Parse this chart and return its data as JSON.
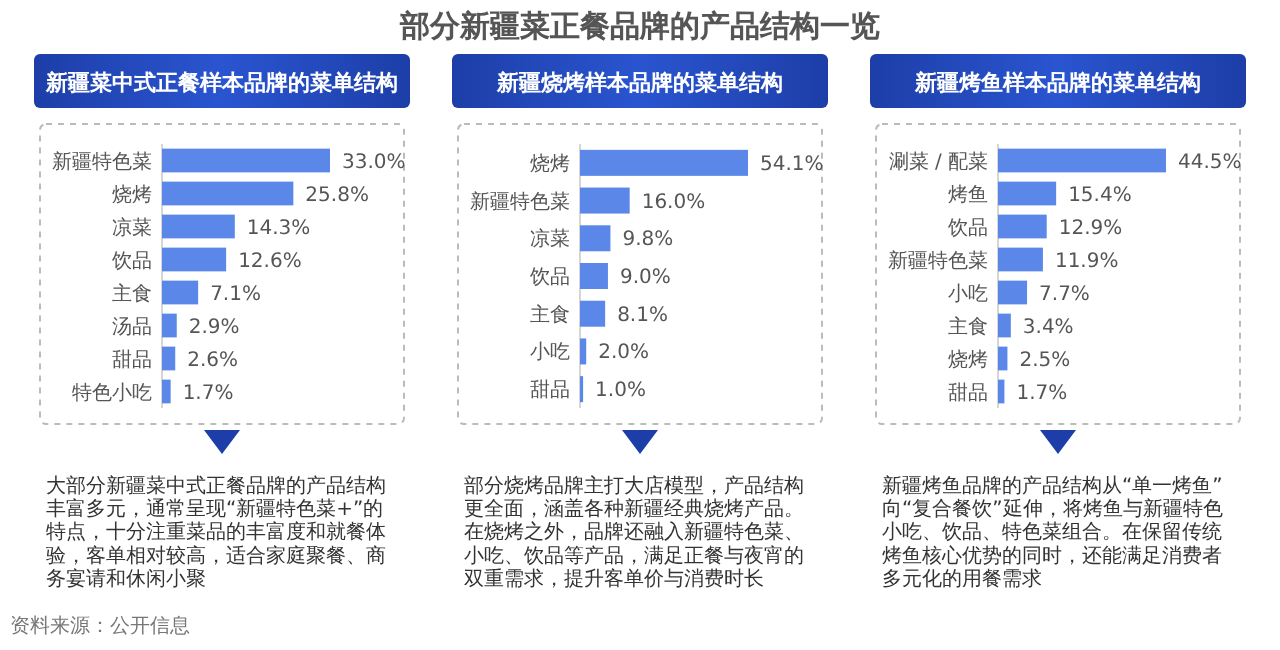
{
  "chart_data": [
    {
      "type": "bar",
      "orientation": "horizontal",
      "subtitle": "新疆菜中式正餐样本品牌的菜单结构",
      "categories": [
        "新疆特色菜",
        "烧烤",
        "凉菜",
        "饮品",
        "主食",
        "汤品",
        "甜品",
        "特色小吃"
      ],
      "values": [
        33.0,
        25.8,
        14.3,
        12.6,
        7.1,
        2.9,
        2.6,
        1.7
      ],
      "value_labels": [
        "33.0%",
        "25.8%",
        "14.3%",
        "12.6%",
        "7.1%",
        "2.9%",
        "2.6%",
        "1.7%"
      ],
      "color": "#5b88e8",
      "annotations": [
        "大部分新疆菜中式正餐品牌的产品结构丰富多元，通常呈现“新疆特色菜+”的特点，十分注重菜品的丰富度和就餐体验，客单相对较高，适合家庭聚餐、商务宴请和休闲小聚",
        "资料来源：公开信息"
      ]
    },
    {
      "type": "bar",
      "orientation": "horizontal",
      "title": "部分新疆菜正餐品牌的产品结构一览",
      "subtitle": "新疆烧烤样本品牌的菜单结构",
      "categories": [
        "烧烤",
        "新疆特色菜",
        "凉菜",
        "饮品",
        "主食",
        "小吃",
        "甜品"
      ],
      "values": [
        54.1,
        16.0,
        9.8,
        9.0,
        8.1,
        2.0,
        1.0
      ],
      "value_labels": [
        "54.1%",
        "16.0%",
        "9.8%",
        "9.0%",
        "8.1%",
        "2.0%",
        "1.0%"
      ],
      "color": "#5b88e8",
      "annotations": [
        "部分烧烤品牌主打大店模型，产品结构更全面，涵盖各种新疆经典烧烤产品。在烧烤之外，品牌还融入新疆特色菜、小吃、饮品等产品，满足正餐与夜宵的双重需求，提升客单价与消费时长"
      ]
    },
    {
      "type": "bar",
      "orientation": "horizontal",
      "subtitle": "新疆烤鱼样本品牌的菜单结构",
      "categories": [
        "涮菜 / 配菜",
        "烤鱼",
        "饮品",
        "新疆特色菜",
        "小吃",
        "主食",
        "烧烤",
        "甜品"
      ],
      "values": [
        44.5,
        15.4,
        12.9,
        11.9,
        7.7,
        3.4,
        2.5,
        1.7
      ],
      "value_labels": [
        "44.5%",
        "15.4%",
        "12.9%",
        "11.9%",
        "7.7%",
        "3.4%",
        "2.5%",
        "1.7%"
      ],
      "color": "#5b88e8",
      "annotations": [
        "新疆烤鱼品牌的产品结构从“单一烤鱼”向“复合餐饮”延伸，将烤鱼与新疆特色小吃、饮品、特色菜组合。在保留传统烤鱼核心优势的同时，还能满足消费者多元化的用餐需求"
      ]
    }
  ]
}
